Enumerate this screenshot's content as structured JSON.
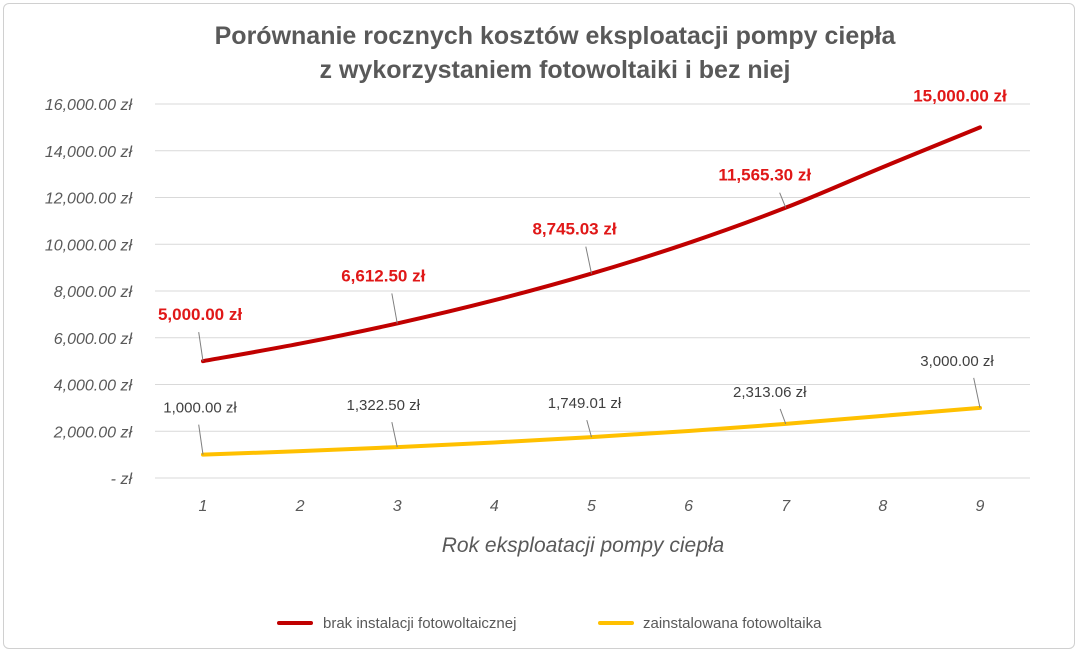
{
  "chart_data": {
    "type": "line",
    "title": [
      "Porównanie rocznych kosztów eksploatacji pompy ciepła",
      "z wykorzystaniem fotowoltaiki i bez niej"
    ],
    "xlabel": "Rok eksploatacji pompy ciepła",
    "ylabel": "",
    "x": [
      1,
      2,
      3,
      4,
      5,
      6,
      7,
      8,
      9
    ],
    "ylim": [
      0,
      16000
    ],
    "yticks": [
      0,
      2000,
      4000,
      6000,
      8000,
      10000,
      12000,
      14000,
      16000
    ],
    "ytick_labels": [
      "-   zł",
      "2,000.00 zł",
      "4,000.00 zł",
      "6,000.00 zł",
      "8,000.00 zł",
      "10,000.00 zł",
      "12,000.00 zł",
      "14,000.00 zł",
      "16,000.00 zł"
    ],
    "grid": "horizontal",
    "legend_position": "bottom",
    "series": [
      {
        "name": "brak instalacji fotowoltaicznej",
        "color": "#c00000",
        "values": [
          5000,
          5750,
          6612.5,
          7604.38,
          8745.03,
          10056.78,
          11565.3,
          13300,
          15000
        ],
        "data_labels": [
          {
            "x": 1,
            "text": "5,000.00 zł"
          },
          {
            "x": 3,
            "text": "6,612.50 zł"
          },
          {
            "x": 5,
            "text": "8,745.03 zł"
          },
          {
            "x": 7,
            "text": "11,565.30 zł"
          },
          {
            "x": 9,
            "text": "15,000.00 zł"
          }
        ]
      },
      {
        "name": "zainstalowana fotowoltaika",
        "color": "#ffc000",
        "values": [
          1000,
          1150,
          1322.5,
          1520.88,
          1749.01,
          2011.36,
          2313.06,
          2660.02,
          3000
        ],
        "data_labels": [
          {
            "x": 1,
            "text": "1,000.00 zł"
          },
          {
            "x": 3,
            "text": "1,322.50 zł"
          },
          {
            "x": 5,
            "text": "1,749.01 zł"
          },
          {
            "x": 7,
            "text": "2,313.06 zł"
          },
          {
            "x": 9,
            "text": "3,000.00 zł"
          }
        ]
      }
    ]
  }
}
